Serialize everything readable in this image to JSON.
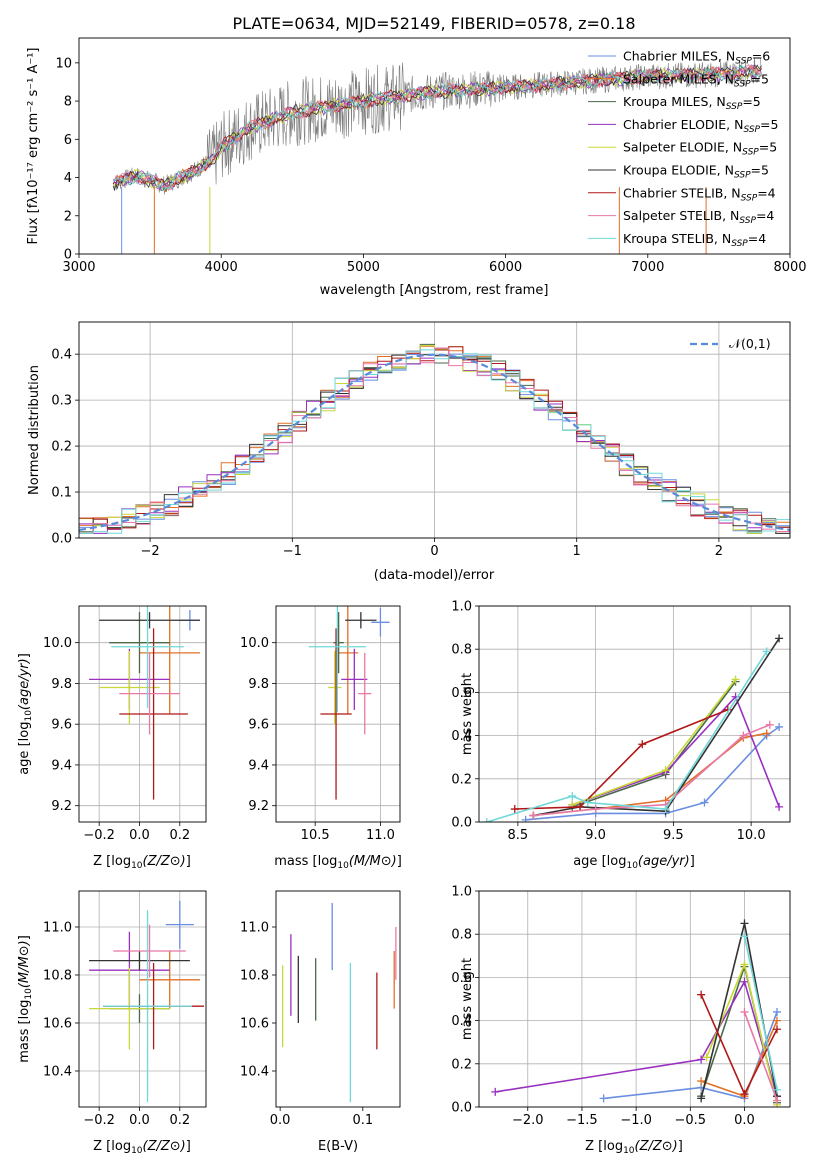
{
  "figure_title": "PLATE=0634, MJD=52149, FIBERID=0578, z=0.18",
  "colors": [
    "#6a8ee0",
    "#e07028",
    "#4a6a4a",
    "#9a30c0",
    "#c8d83a",
    "#333333",
    "#b01818",
    "#e878a8",
    "#70d8d8"
  ],
  "legend_models": [
    {
      "name": "Chabrier MILES",
      "nssp": "6"
    },
    {
      "name": "Salpeter MILES",
      "nssp": "5"
    },
    {
      "name": "Kroupa MILES",
      "nssp": "5"
    },
    {
      "name": "Chabrier ELODIE",
      "nssp": "5"
    },
    {
      "name": "Salpeter ELODIE",
      "nssp": "5"
    },
    {
      "name": "Kroupa ELODIE",
      "nssp": "5"
    },
    {
      "name": "Chabrier STELIB",
      "nssp": "4"
    },
    {
      "name": "Salpeter STELIB",
      "nssp": "4"
    },
    {
      "name": "Kroupa STELIB",
      "nssp": "4"
    }
  ],
  "chart_data": [
    {
      "id": "spectrum",
      "type": "line",
      "xlabel": "wavelength [Angstrom, rest frame]",
      "ylabel": "Flux [f_λ10^-17 erg cm^-2 s^-1 A^-1]",
      "xlim": [
        3000,
        8000
      ],
      "ylim": [
        0,
        11.3
      ],
      "xticks": [
        3000,
        4000,
        5000,
        6000,
        7000,
        8000
      ],
      "yticks": [
        0,
        2,
        4,
        6,
        8,
        10
      ],
      "data_color": "#7a7a7a",
      "continuum": [
        [
          3240,
          3.7
        ],
        [
          3400,
          4.1
        ],
        [
          3600,
          3.6
        ],
        [
          3800,
          4.3
        ],
        [
          3950,
          5.0
        ],
        [
          4000,
          5.6
        ],
        [
          4200,
          6.6
        ],
        [
          4500,
          7.4
        ],
        [
          5000,
          8.0
        ],
        [
          5500,
          8.5
        ],
        [
          6000,
          8.7
        ],
        [
          6500,
          9.0
        ],
        [
          7000,
          9.3
        ],
        [
          7500,
          9.4
        ],
        [
          7800,
          9.6
        ]
      ]
    },
    {
      "id": "residuals",
      "type": "line",
      "xlabel": "(data-model)/error",
      "ylabel": "Normed distribution",
      "xlim": [
        -2.5,
        2.5
      ],
      "ylim": [
        0,
        0.47
      ],
      "xticks": [
        -2,
        -1,
        0,
        1,
        2
      ],
      "yticks": [
        0.0,
        0.1,
        0.2,
        0.3,
        0.4
      ],
      "legend": "𝒩(0,1)",
      "grid": true
    },
    {
      "id": "age_vs_Z",
      "type": "scatter",
      "xlabel": "Z [log10(Z/Z⊙)]",
      "ylabel": "age  [log10(age/yr)]",
      "xlim": [
        -0.3,
        0.33
      ],
      "ylim": [
        9.12,
        10.18
      ],
      "xticks": [
        -0.2,
        0.0,
        0.2
      ],
      "yticks": [
        9.2,
        9.4,
        9.6,
        9.8,
        10.0
      ],
      "grid": true,
      "points": [
        {
          "x": 0.25,
          "xerr": 0.05,
          "y": 10.11,
          "yerr": 0.05
        },
        {
          "x": 0.15,
          "xerr": 0.15,
          "y": 9.95,
          "yerr": 0.3
        },
        {
          "x": 0.0,
          "xerr": 0.15,
          "y": 10.0,
          "yerr": 0.15
        },
        {
          "x": -0.05,
          "xerr": 0.2,
          "y": 9.82,
          "yerr": 0.15
        },
        {
          "x": -0.05,
          "xerr": 0.15,
          "y": 9.78,
          "yerr": 0.18
        },
        {
          "x": 0.05,
          "xerr": 0.25,
          "y": 10.11,
          "yerr": 0.04
        },
        {
          "x": 0.07,
          "xerr": 0.17,
          "y": 9.65,
          "yerr": 0.42
        },
        {
          "x": 0.05,
          "xerr": 0.15,
          "y": 9.75,
          "yerr": 0.2
        },
        {
          "x": 0.04,
          "xerr": 0.18,
          "y": 9.98,
          "yerr": 0.3
        }
      ]
    },
    {
      "id": "age_vs_mass",
      "type": "scatter",
      "xlabel": "mass [log10(M/M⊙)]",
      "xlim": [
        10.2,
        11.15
      ],
      "ylim": [
        9.12,
        10.18
      ],
      "xticks": [
        10.5,
        11.0
      ],
      "yticks": [
        9.2,
        9.4,
        9.6,
        9.8,
        10.0
      ],
      "grid": true,
      "points": [
        {
          "x": 11.0,
          "xerr": 0.07,
          "y": 10.1,
          "yerr": 0.07
        },
        {
          "x": 10.75,
          "xerr": 0.08,
          "y": 9.95,
          "yerr": 0.3
        },
        {
          "x": 10.68,
          "xerr": 0.04,
          "y": 10.0,
          "yerr": 0.15
        },
        {
          "x": 10.8,
          "xerr": 0.1,
          "y": 9.82,
          "yerr": 0.15
        },
        {
          "x": 10.65,
          "xerr": 0.05,
          "y": 9.78,
          "yerr": 0.18
        },
        {
          "x": 10.85,
          "xerr": 0.12,
          "y": 10.11,
          "yerr": 0.04
        },
        {
          "x": 10.66,
          "xerr": 0.12,
          "y": 9.65,
          "yerr": 0.42
        },
        {
          "x": 10.88,
          "xerr": 0.05,
          "y": 9.75,
          "yerr": 0.2
        },
        {
          "x": 10.67,
          "xerr": 0.22,
          "y": 9.98,
          "yerr": 0.32
        }
      ]
    },
    {
      "id": "weight_vs_age",
      "type": "line",
      "xlabel": "age  [log10(age/yr)]",
      "ylabel": "mass weight",
      "xlim": [
        8.25,
        10.25
      ],
      "ylim": [
        0,
        1.0
      ],
      "xticks": [
        8.5,
        9.0,
        9.5,
        10.0
      ],
      "yticks": [
        0.0,
        0.2,
        0.4,
        0.6,
        0.8,
        1.0
      ],
      "grid": true,
      "series": [
        {
          "x": [
            8.55,
            9.0,
            9.45,
            9.7,
            10.1,
            10.18
          ],
          "y": [
            0.01,
            0.04,
            0.04,
            0.09,
            0.4,
            0.44
          ]
        },
        {
          "x": [
            8.6,
            9.0,
            9.45,
            9.95,
            10.1
          ],
          "y": [
            0.03,
            0.06,
            0.1,
            0.39,
            0.41
          ]
        },
        {
          "x": [
            8.85,
            9.45,
            9.9
          ],
          "y": [
            0.07,
            0.22,
            0.65
          ]
        },
        {
          "x": [
            8.85,
            9.45,
            9.9,
            10.18
          ],
          "y": [
            0.08,
            0.23,
            0.58,
            0.07
          ]
        },
        {
          "x": [
            8.85,
            9.45,
            9.9
          ],
          "y": [
            0.08,
            0.24,
            0.66
          ]
        },
        {
          "x": [
            8.6,
            8.9,
            9.45,
            10.18
          ],
          "y": [
            0.03,
            0.07,
            0.05,
            0.85
          ]
        },
        {
          "x": [
            8.48,
            8.9,
            9.3,
            9.85
          ],
          "y": [
            0.06,
            0.07,
            0.36,
            0.52
          ]
        },
        {
          "x": [
            8.6,
            9.0,
            9.45,
            9.95,
            10.12
          ],
          "y": [
            0.03,
            0.06,
            0.08,
            0.4,
            0.45
          ]
        },
        {
          "x": [
            8.3,
            8.85,
            8.95,
            9.45,
            10.1
          ],
          "y": [
            0.0,
            0.12,
            0.09,
            0.06,
            0.79
          ]
        }
      ]
    },
    {
      "id": "mass_vs_Z",
      "type": "scatter",
      "xlabel": "Z [log10(Z/Z⊙)]",
      "ylabel": "mass [log10(M/M⊙)]",
      "xlim": [
        -0.3,
        0.33
      ],
      "ylim": [
        10.25,
        11.15
      ],
      "xticks": [
        -0.2,
        0.0,
        0.2
      ],
      "yticks": [
        10.4,
        10.6,
        10.8,
        11.0
      ],
      "grid": true,
      "points": [
        {
          "x": 0.2,
          "xerr": 0.07,
          "y": 11.01,
          "yerr": 0.1
        },
        {
          "x": 0.15,
          "xerr": 0.15,
          "y": 10.78,
          "yerr": 0.12
        },
        {
          "x": 0.0,
          "xerr": 0.15,
          "y": 10.66,
          "yerr": 0.06
        },
        {
          "x": -0.05,
          "xerr": 0.2,
          "y": 10.82,
          "yerr": 0.16
        },
        {
          "x": -0.05,
          "xerr": 0.2,
          "y": 10.66,
          "yerr": 0.17
        },
        {
          "x": 0.0,
          "xerr": 0.25,
          "y": 10.86,
          "yerr": 0.04
        },
        {
          "x": 0.07,
          "xerr": 0.25,
          "y": 10.67,
          "yerr": 0.18
        },
        {
          "x": 0.05,
          "xerr": 0.18,
          "y": 10.9,
          "yerr": 0.11
        },
        {
          "x": 0.04,
          "xerr": 0.22,
          "y": 10.67,
          "yerr": 0.4
        }
      ]
    },
    {
      "id": "mass_vs_ebv",
      "type": "scatter",
      "xlabel": "E(B-V)",
      "xlim": [
        -0.005,
        0.145
      ],
      "ylim": [
        10.25,
        11.15
      ],
      "xticks": [
        0.0,
        0.1
      ],
      "yticks": [
        10.4,
        10.6,
        10.8,
        11.0
      ],
      "points": [
        {
          "x": 0.063,
          "xerr": 0,
          "y": 10.96,
          "yerr": 0.14
        },
        {
          "x": 0.138,
          "xerr": 0,
          "y": 10.78,
          "yerr": 0.12
        },
        {
          "x": 0.043,
          "xerr": 0,
          "y": 10.74,
          "yerr": 0.13
        },
        {
          "x": 0.013,
          "xerr": 0,
          "y": 10.8,
          "yerr": 0.17
        },
        {
          "x": 0.003,
          "xerr": 0,
          "y": 10.67,
          "yerr": 0.17
        },
        {
          "x": 0.022,
          "xerr": 0,
          "y": 10.74,
          "yerr": 0.14
        },
        {
          "x": 0.117,
          "xerr": 0,
          "y": 10.65,
          "yerr": 0.16
        },
        {
          "x": 0.14,
          "xerr": 0,
          "y": 10.89,
          "yerr": 0.11
        },
        {
          "x": 0.085,
          "xerr": 0,
          "y": 10.56,
          "yerr": 0.29
        }
      ]
    },
    {
      "id": "weight_vs_Z",
      "type": "line",
      "xlabel": "Z [log10(Z/Z⊙)]",
      "ylabel": "mass weight",
      "xlim": [
        -2.45,
        0.42
      ],
      "ylim": [
        0,
        1.0
      ],
      "xticks": [
        -2.0,
        -1.5,
        -1.0,
        -0.5,
        0.0
      ],
      "yticks": [
        0.0,
        0.2,
        0.4,
        0.6,
        0.8,
        1.0
      ],
      "grid": true,
      "series": [
        {
          "x": [
            -1.3,
            -0.4,
            0.0,
            0.3
          ],
          "y": [
            0.04,
            0.09,
            0.04,
            0.44
          ]
        },
        {
          "x": [
            -0.4,
            0.0,
            0.3
          ],
          "y": [
            0.12,
            0.05,
            0.4
          ]
        },
        {
          "x": [
            -0.4,
            0.0,
            0.3
          ],
          "y": [
            0.05,
            0.65,
            0.02
          ]
        },
        {
          "x": [
            -2.3,
            -0.4,
            0.0,
            0.3
          ],
          "y": [
            0.07,
            0.22,
            0.58,
            0.05
          ]
        },
        {
          "x": [
            -0.35,
            0.0,
            0.3
          ],
          "y": [
            0.23,
            0.66,
            0.01
          ]
        },
        {
          "x": [
            -0.4,
            0.0,
            0.3
          ],
          "y": [
            0.04,
            0.85,
            0.05
          ]
        },
        {
          "x": [
            -0.4,
            0.0,
            0.3
          ],
          "y": [
            0.52,
            0.06,
            0.36
          ]
        },
        {
          "x": [
            0.0,
            0.3
          ],
          "y": [
            0.44,
            0.03
          ]
        },
        {
          "x": [
            0.0,
            0.3
          ],
          "y": [
            0.79,
            0.08
          ]
        }
      ]
    }
  ]
}
